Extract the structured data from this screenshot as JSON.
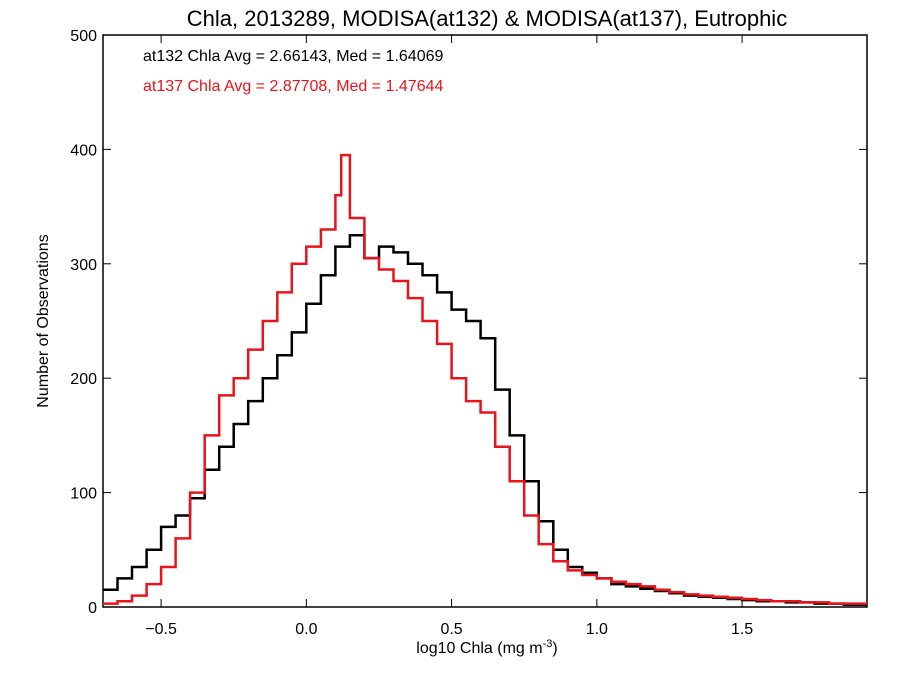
{
  "chart_data": {
    "type": "line",
    "title": "Chla, 2013289, MODISA(at132) & MODISA(at137), Eutrophic",
    "xlabel": "log10 Chla (mg m",
    "xlabel_sup": "-3",
    "xlabel_end": ")",
    "ylabel": "Number of Observations",
    "xlim": [
      -0.7,
      1.93
    ],
    "ylim": [
      0,
      500
    ],
    "x_ticks": [
      -0.5,
      0.0,
      0.5,
      1.0,
      1.5
    ],
    "x_tick_labels": [
      "−0.5",
      "0.0",
      "0.5",
      "1.0",
      "1.5"
    ],
    "y_ticks": [
      0,
      100,
      200,
      300,
      400,
      500
    ],
    "y_tick_labels": [
      "0",
      "100",
      "200",
      "300",
      "400",
      "500"
    ],
    "grid": false,
    "legend": [
      {
        "text": "at132 Chla Avg = 2.66143, Med = 1.64069",
        "color": "#000000"
      },
      {
        "text": "at137 Chla Avg = 2.87708, Med = 1.47644",
        "color": "#e8141b"
      }
    ],
    "series": [
      {
        "color": "#000000",
        "x": [
          -0.7,
          -0.65,
          -0.6,
          -0.55,
          -0.5,
          -0.45,
          -0.4,
          -0.35,
          -0.3,
          -0.25,
          -0.2,
          -0.15,
          -0.1,
          -0.05,
          0.0,
          0.05,
          0.1,
          0.15,
          0.2,
          0.25,
          0.3,
          0.35,
          0.4,
          0.45,
          0.5,
          0.55,
          0.6,
          0.65,
          0.7,
          0.75,
          0.8,
          0.85,
          0.9,
          0.95,
          1.0,
          1.05,
          1.1,
          1.15,
          1.2,
          1.25,
          1.3,
          1.35,
          1.4,
          1.45,
          1.5,
          1.55,
          1.6,
          1.65,
          1.7,
          1.75,
          1.8,
          1.85,
          1.93
        ],
        "y": [
          15,
          25,
          35,
          50,
          70,
          80,
          95,
          120,
          140,
          160,
          180,
          200,
          220,
          240,
          265,
          290,
          315,
          325,
          305,
          315,
          310,
          300,
          290,
          275,
          260,
          250,
          235,
          190,
          150,
          110,
          75,
          50,
          35,
          30,
          25,
          20,
          18,
          16,
          14,
          12,
          10,
          9,
          8,
          7,
          6,
          5,
          5,
          4,
          4,
          3,
          3,
          2,
          2
        ]
      },
      {
        "color": "#e8141b",
        "x": [
          -0.7,
          -0.65,
          -0.6,
          -0.55,
          -0.5,
          -0.45,
          -0.4,
          -0.35,
          -0.3,
          -0.25,
          -0.2,
          -0.15,
          -0.1,
          -0.05,
          0.0,
          0.05,
          0.1,
          0.12,
          0.15,
          0.2,
          0.25,
          0.3,
          0.35,
          0.4,
          0.45,
          0.5,
          0.55,
          0.6,
          0.65,
          0.7,
          0.75,
          0.8,
          0.85,
          0.9,
          0.95,
          1.0,
          1.05,
          1.1,
          1.15,
          1.2,
          1.25,
          1.3,
          1.35,
          1.4,
          1.45,
          1.5,
          1.55,
          1.6,
          1.65,
          1.7,
          1.75,
          1.8,
          1.85,
          1.93
        ],
        "y": [
          3,
          5,
          10,
          20,
          35,
          60,
          100,
          150,
          185,
          200,
          225,
          250,
          275,
          300,
          315,
          330,
          360,
          395,
          340,
          305,
          295,
          285,
          270,
          250,
          230,
          200,
          180,
          170,
          140,
          110,
          80,
          55,
          40,
          32,
          28,
          25,
          22,
          20,
          18,
          15,
          13,
          11,
          10,
          9,
          8,
          7,
          6,
          5,
          5,
          4,
          4,
          3,
          3,
          3
        ]
      }
    ]
  }
}
